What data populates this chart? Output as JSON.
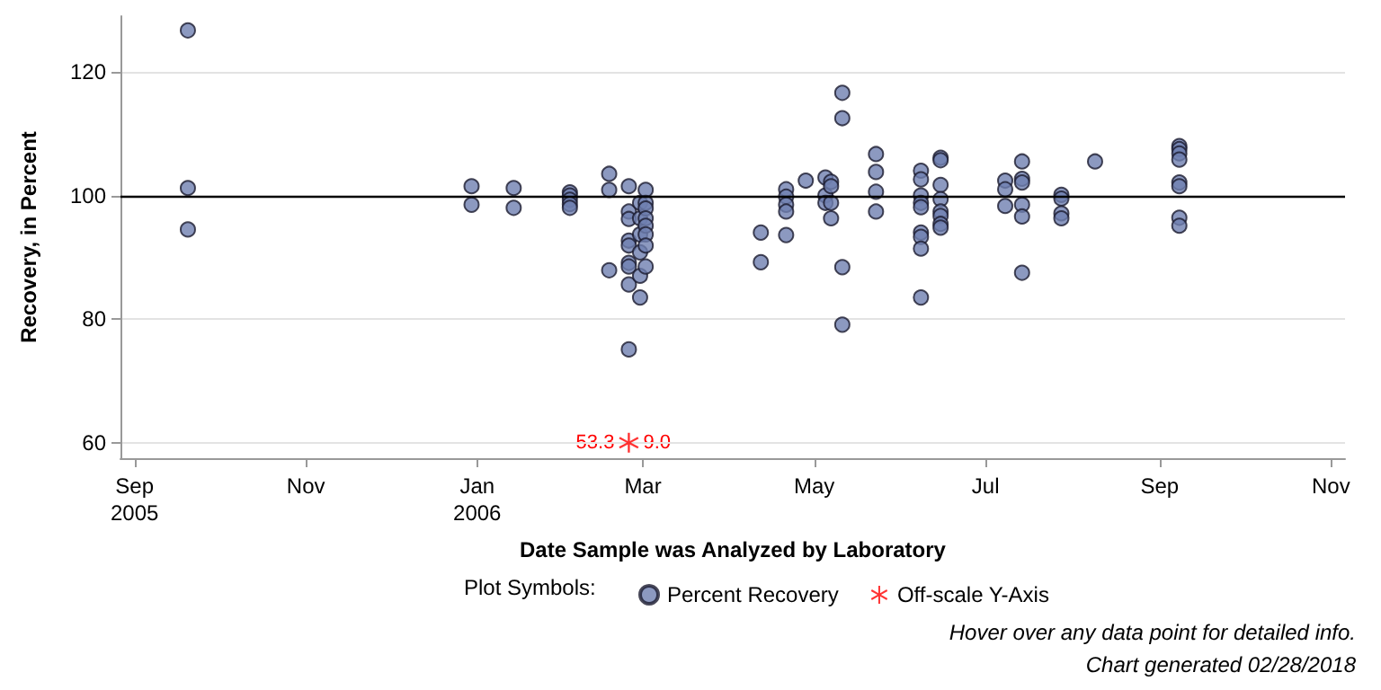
{
  "chart_data": {
    "type": "scatter",
    "xlabel": "Date Sample was Analyzed by Laboratory",
    "ylabel": "Recovery, in Percent",
    "legend_title": "Plot Symbols:",
    "legend": "bottom",
    "grid": "y",
    "xlim": [
      "2005-08-27",
      "2006-11-06"
    ],
    "xticks": [
      {
        "value": "2005-09-01",
        "label": "Sep\n2005"
      },
      {
        "value": "2005-11-01",
        "label": "Nov"
      },
      {
        "value": "2006-01-01",
        "label": "Jan\n2006"
      },
      {
        "value": "2006-03-01",
        "label": "Mar"
      },
      {
        "value": "2006-05-01",
        "label": "May"
      },
      {
        "value": "2006-07-01",
        "label": "Jul"
      },
      {
        "value": "2006-09-01",
        "label": "Sep"
      },
      {
        "value": "2006-11-01",
        "label": "Nov"
      }
    ],
    "ylim": [
      57.5,
      129
    ],
    "yticks": [
      60,
      80,
      100,
      120
    ],
    "ref_lines": [
      {
        "axis": "y",
        "value": 100,
        "color": "#000000",
        "line_style": "solid"
      }
    ],
    "annotations": [
      "Hover over any data point for detailed info.",
      "Chart generated 02/28/2018",
      {
        "text": "53.3",
        "x": "2006-02-24",
        "y": 60
      },
      {
        "text": "9.0",
        "x": "2006-02-24",
        "y": 60
      }
    ],
    "series": [
      {
        "name": "Percent Recovery",
        "color": "#6f7fb0",
        "marker": "circle",
        "x": [
          "2005-09-20",
          "2005-09-20",
          "2005-09-20",
          "2005-12-30",
          "2005-12-30",
          "2006-01-14",
          "2006-01-14",
          "2006-02-03",
          "2006-02-03",
          "2006-02-03",
          "2006-02-03",
          "2006-02-03",
          "2006-02-17",
          "2006-02-17",
          "2006-02-17",
          "2006-02-24",
          "2006-02-24",
          "2006-02-24",
          "2006-02-24",
          "2006-02-24",
          "2006-02-24",
          "2006-02-24",
          "2006-02-24",
          "2006-02-24",
          "2006-02-28",
          "2006-02-28",
          "2006-02-28",
          "2006-02-28",
          "2006-02-28",
          "2006-02-28",
          "2006-03-02",
          "2006-03-02",
          "2006-03-02",
          "2006-03-02",
          "2006-03-02",
          "2006-03-02",
          "2006-03-02",
          "2006-03-02",
          "2006-04-12",
          "2006-04-12",
          "2006-04-21",
          "2006-04-21",
          "2006-04-21",
          "2006-04-21",
          "2006-04-21",
          "2006-04-28",
          "2006-05-05",
          "2006-05-05",
          "2006-05-05",
          "2006-05-07",
          "2006-05-07",
          "2006-05-07",
          "2006-05-07",
          "2006-05-11",
          "2006-05-11",
          "2006-05-11",
          "2006-05-11",
          "2006-05-23",
          "2006-05-23",
          "2006-05-23",
          "2006-05-23",
          "2006-06-08",
          "2006-06-08",
          "2006-06-08",
          "2006-06-08",
          "2006-06-08",
          "2006-06-08",
          "2006-06-08",
          "2006-06-08",
          "2006-06-08",
          "2006-06-15",
          "2006-06-15",
          "2006-06-15",
          "2006-06-15",
          "2006-06-15",
          "2006-06-15",
          "2006-06-15",
          "2006-06-15",
          "2006-07-08",
          "2006-07-08",
          "2006-07-08",
          "2006-07-14",
          "2006-07-14",
          "2006-07-14",
          "2006-07-14",
          "2006-07-14",
          "2006-07-14",
          "2006-07-28",
          "2006-07-28",
          "2006-07-28",
          "2006-07-28",
          "2006-08-09",
          "2006-09-08",
          "2006-09-08",
          "2006-09-08",
          "2006-09-08",
          "2006-09-08",
          "2006-09-08",
          "2006-09-08",
          "2006-09-08"
        ],
        "values": [
          126.7,
          101.2,
          94.5,
          101.5,
          98.5,
          101.2,
          98.0,
          100.5,
          100,
          99.3,
          98.6,
          98.0,
          103.5,
          100.9,
          87.9,
          101.5,
          97.4,
          96.2,
          92.7,
          91.9,
          89.1,
          88.5,
          85.6,
          75.1,
          98.8,
          96.3,
          93.7,
          90.8,
          87.0,
          83.5,
          100.9,
          98.8,
          97.9,
          96.3,
          95.1,
          93.7,
          91.9,
          88.5,
          94.0,
          89.2,
          101.0,
          99.8,
          98.5,
          97.4,
          93.6,
          102.4,
          102.9,
          100,
          98.8,
          102.2,
          101.5,
          98.8,
          96.3,
          116.6,
          112.5,
          88.4,
          79.1,
          106.7,
          103.8,
          100.6,
          97.4,
          104.0,
          102.6,
          100,
          98.8,
          98.1,
          94.0,
          93.3,
          91.4,
          83.5,
          106.1,
          105.7,
          101.7,
          99.4,
          97.4,
          96.7,
          95.4,
          94.8,
          102.4,
          101.0,
          98.3,
          105.5,
          102.7,
          102.1,
          98.5,
          96.6,
          87.5,
          100.1,
          99.5,
          97.1,
          96.3,
          105.5,
          108.0,
          107.5,
          106.8,
          105.8,
          102.1,
          101.5,
          96.4,
          95.1
        ]
      },
      {
        "name": "Off-scale Y-Axis",
        "color": "#ff0000",
        "marker": "star",
        "x": [
          "2006-02-24"
        ],
        "values": [
          60
        ]
      }
    ]
  }
}
